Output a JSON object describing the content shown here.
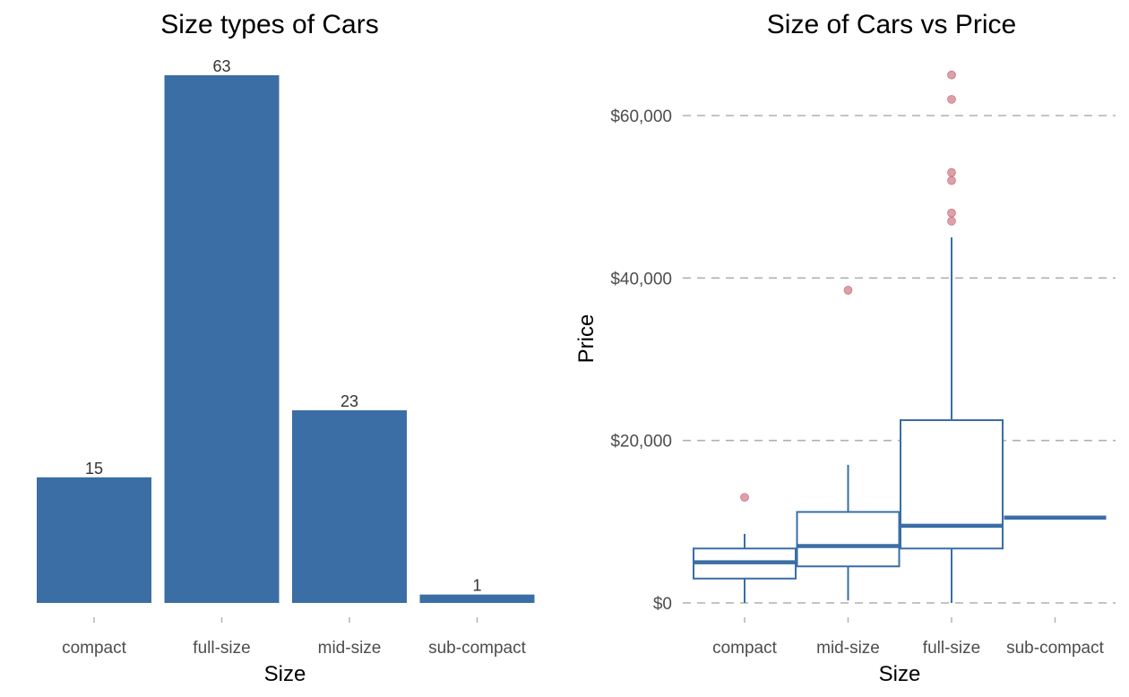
{
  "chart_data": [
    {
      "type": "bar",
      "title": "Size types of Cars",
      "xlabel": "Size",
      "ylabel": "",
      "categories": [
        "compact",
        "full-size",
        "mid-size",
        "sub-compact"
      ],
      "values": [
        15,
        63,
        23,
        1
      ],
      "data_labels": [
        "15",
        "63",
        "23",
        "1"
      ],
      "ylim": [
        0,
        64
      ],
      "bar_color": "#3a6ea5",
      "grid": false
    },
    {
      "type": "box",
      "title": "Size of Cars vs Price",
      "xlabel": "Size",
      "ylabel": "Price",
      "categories": [
        "compact",
        "mid-size",
        "full-size",
        "sub-compact"
      ],
      "y_ticks": [
        0,
        20000,
        40000,
        60000
      ],
      "y_tick_labels": [
        "$0",
        "$20,000",
        "$40,000",
        "$60,000"
      ],
      "ylim": [
        -2500,
        67000
      ],
      "box_color": "#3a6ea5",
      "outlier_color": "#d08088",
      "gridlines": "horizontal dashed",
      "boxes": [
        {
          "category": "compact",
          "min": 0,
          "q1": 3000,
          "median": 5000,
          "q3": 6700,
          "max": 8500,
          "outliers": [
            13000
          ]
        },
        {
          "category": "mid-size",
          "min": 300,
          "q1": 4500,
          "median": 7000,
          "q3": 11200,
          "max": 17000,
          "outliers": [
            38500
          ]
        },
        {
          "category": "full-size",
          "min": 0,
          "q1": 6700,
          "median": 9500,
          "q3": 22500,
          "max": 45000,
          "outliers": [
            47000,
            48000,
            52000,
            53000,
            62000,
            65000
          ]
        },
        {
          "category": "sub-compact",
          "min": 10500,
          "q1": 10500,
          "median": 10500,
          "q3": 10500,
          "max": 10500,
          "outliers": []
        }
      ]
    }
  ]
}
